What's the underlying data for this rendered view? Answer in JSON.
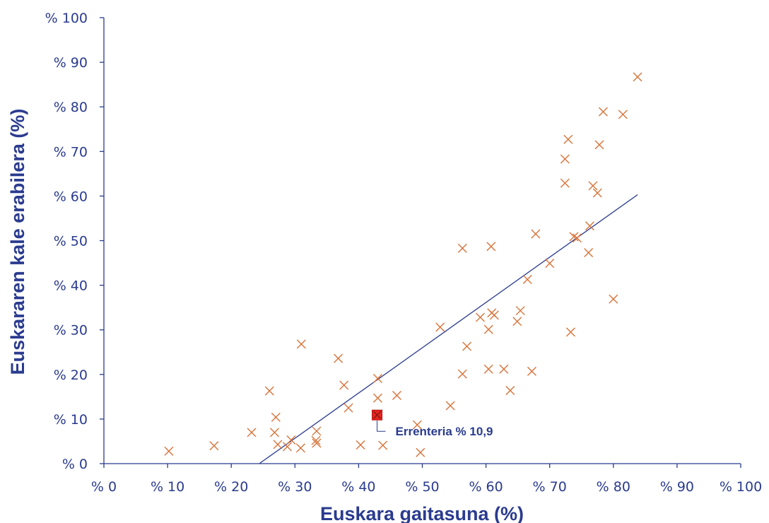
{
  "chart_data": {
    "type": "scatter",
    "title": "",
    "xlabel": "Euskara gaitasuna (%)",
    "ylabel": "Euskararen kale erabilera (%)",
    "xlim": [
      0,
      100
    ],
    "ylim": [
      0,
      100
    ],
    "x_ticks": [
      "% 0",
      "% 10",
      "% 20",
      "% 30",
      "% 40",
      "% 50",
      "% 60",
      "% 70",
      "% 80",
      "% 90",
      "% 100"
    ],
    "y_ticks": [
      "% 0",
      "% 10",
      "% 20",
      "% 30",
      "% 40",
      "% 50",
      "% 60",
      "% 70",
      "% 80",
      "% 90",
      "% 100"
    ],
    "grid": false,
    "legend": "none",
    "colors": {
      "axis": "#2a3b8f",
      "marker": "#d9733a",
      "trend": "#2a3b8f",
      "highlight": "#e8231e"
    },
    "points": [
      {
        "x": 10.2,
        "y": 2.8
      },
      {
        "x": 17.3,
        "y": 4.0
      },
      {
        "x": 23.2,
        "y": 7.0
      },
      {
        "x": 26.0,
        "y": 16.3
      },
      {
        "x": 27.0,
        "y": 10.4
      },
      {
        "x": 26.8,
        "y": 7.0
      },
      {
        "x": 27.3,
        "y": 4.3
      },
      {
        "x": 28.8,
        "y": 3.8
      },
      {
        "x": 29.4,
        "y": 5.3
      },
      {
        "x": 30.9,
        "y": 3.5
      },
      {
        "x": 31.0,
        "y": 26.8
      },
      {
        "x": 33.3,
        "y": 5.2
      },
      {
        "x": 33.4,
        "y": 7.3
      },
      {
        "x": 33.4,
        "y": 4.6
      },
      {
        "x": 36.8,
        "y": 23.6
      },
      {
        "x": 37.7,
        "y": 17.6
      },
      {
        "x": 38.4,
        "y": 12.5
      },
      {
        "x": 40.3,
        "y": 4.2
      },
      {
        "x": 43.0,
        "y": 19.1
      },
      {
        "x": 43.0,
        "y": 14.7
      },
      {
        "x": 43.8,
        "y": 4.1
      },
      {
        "x": 46.0,
        "y": 15.3
      },
      {
        "x": 49.2,
        "y": 8.7
      },
      {
        "x": 49.7,
        "y": 2.5
      },
      {
        "x": 54.4,
        "y": 13.0
      },
      {
        "x": 52.8,
        "y": 30.6
      },
      {
        "x": 56.3,
        "y": 48.3
      },
      {
        "x": 56.3,
        "y": 20.1
      },
      {
        "x": 57.0,
        "y": 26.3
      },
      {
        "x": 59.1,
        "y": 32.8
      },
      {
        "x": 60.4,
        "y": 30.1
      },
      {
        "x": 60.4,
        "y": 21.2
      },
      {
        "x": 60.8,
        "y": 48.7
      },
      {
        "x": 60.9,
        "y": 33.8
      },
      {
        "x": 61.3,
        "y": 33.3
      },
      {
        "x": 62.8,
        "y": 21.2
      },
      {
        "x": 63.8,
        "y": 16.4
      },
      {
        "x": 64.9,
        "y": 31.9
      },
      {
        "x": 65.4,
        "y": 34.3
      },
      {
        "x": 66.5,
        "y": 41.3
      },
      {
        "x": 67.2,
        "y": 20.7
      },
      {
        "x": 67.8,
        "y": 51.5
      },
      {
        "x": 70.0,
        "y": 44.9
      },
      {
        "x": 72.4,
        "y": 68.3
      },
      {
        "x": 72.4,
        "y": 62.9
      },
      {
        "x": 72.9,
        "y": 72.7
      },
      {
        "x": 73.3,
        "y": 29.5
      },
      {
        "x": 73.8,
        "y": 50.9
      },
      {
        "x": 74.3,
        "y": 50.6
      },
      {
        "x": 76.1,
        "y": 47.3
      },
      {
        "x": 76.3,
        "y": 53.3
      },
      {
        "x": 76.8,
        "y": 62.3
      },
      {
        "x": 77.5,
        "y": 60.7
      },
      {
        "x": 77.8,
        "y": 71.5
      },
      {
        "x": 78.4,
        "y": 78.9
      },
      {
        "x": 80.0,
        "y": 36.9
      },
      {
        "x": 81.5,
        "y": 78.3
      },
      {
        "x": 83.8,
        "y": 86.7
      }
    ],
    "trendline": {
      "x": [
        24.4,
        83.8
      ],
      "y": [
        0,
        60.3
      ]
    },
    "highlight": {
      "x": 42.9,
      "y": 10.9,
      "label": "Errenteria % 10,9"
    }
  }
}
